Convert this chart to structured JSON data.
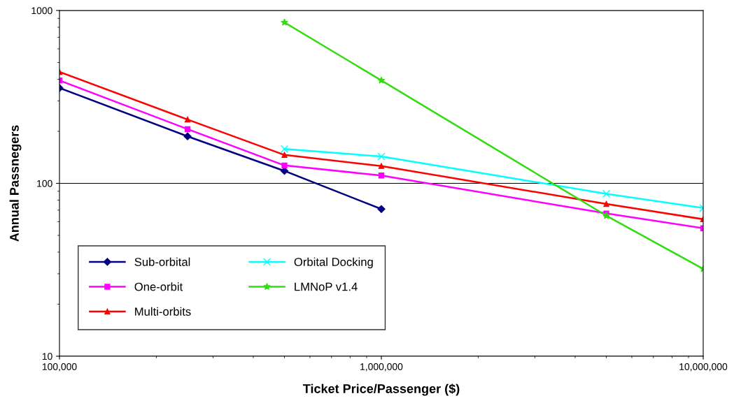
{
  "chart_data": {
    "type": "line",
    "xlabel": "Ticket Price/Passenger ($)",
    "ylabel": "Annual Passnegers",
    "log": "xy",
    "grid": "y",
    "legend": "bottom left",
    "xlim": [
      100000,
      10000000
    ],
    "xticks": [
      {
        "value": 100000,
        "label": "100,000"
      },
      {
        "value": 1000000,
        "label": "1,000,000"
      },
      {
        "value": 10000000,
        "label": "10,000,000"
      }
    ],
    "ylim": [
      10,
      1000
    ],
    "yticks": [
      10,
      100,
      1000
    ],
    "series": [
      {
        "name": "Sub-orbital",
        "color": "#000080",
        "marker": "diamond",
        "x": [
          100000,
          250000,
          500000,
          1000000
        ],
        "values": [
          356,
          187,
          118,
          71
        ]
      },
      {
        "name": "One-orbit",
        "color": "#ff00ff",
        "marker": "square",
        "x": [
          100000,
          250000,
          500000,
          1000000,
          5000000,
          10000000
        ],
        "values": [
          394,
          206,
          127,
          111,
          67,
          55
        ]
      },
      {
        "name": "Multi-orbits",
        "color": "#ff0000",
        "marker": "triangle",
        "x": [
          100000,
          250000,
          500000,
          1000000,
          5000000,
          10000000
        ],
        "values": [
          441,
          234,
          146,
          126,
          76,
          62
        ]
      },
      {
        "name": "Orbital Docking",
        "color": "#00ffff",
        "marker": "cross",
        "x": [
          500000,
          1000000,
          5000000,
          10000000
        ],
        "values": [
          158,
          143,
          87,
          72
        ]
      },
      {
        "name": "LMNoP v1.4",
        "color": "#33dd11",
        "marker": "star",
        "x": [
          500000,
          1000000,
          5000000,
          10000000
        ],
        "values": [
          853,
          394,
          65,
          32
        ]
      }
    ]
  }
}
